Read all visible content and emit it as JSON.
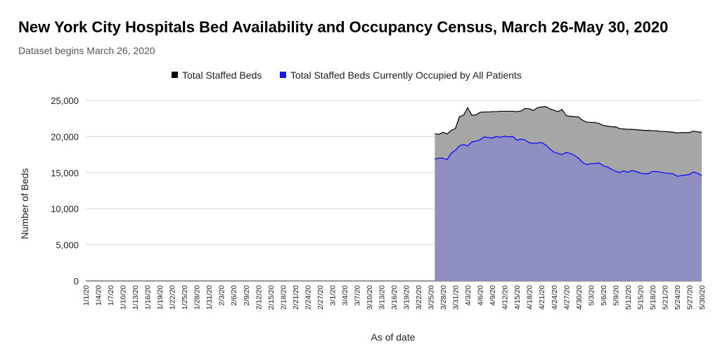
{
  "title": "New York City Hospitals Bed Availability and Occupancy Census, March 26-May 30, 2020",
  "subtitle": "Dataset begins March 26, 2020",
  "chart_data": {
    "type": "area",
    "title": "New York City Hospitals Bed Availability and Occupancy Census, March 26-May 30, 2020",
    "subtitle": "Dataset begins March 26, 2020",
    "xlabel": "As of date",
    "ylabel": "Number of Beds",
    "ylim": [
      0,
      25000
    ],
    "yticks": [
      0,
      5000,
      10000,
      15000,
      20000,
      25000
    ],
    "ytick_labels": [
      "0",
      "5,000",
      "10,000",
      "15,000",
      "20,000",
      "25,000"
    ],
    "x_range": [
      "1/1/20",
      "5/30/20"
    ],
    "xtick_labels": [
      "1/1/20",
      "1/4/20",
      "1/7/20",
      "1/10/20",
      "1/13/20",
      "1/16/20",
      "1/19/20",
      "1/22/20",
      "1/25/20",
      "1/28/20",
      "1/31/20",
      "2/3/20",
      "2/6/20",
      "2/9/20",
      "2/12/20",
      "2/15/20",
      "2/18/20",
      "2/21/20",
      "2/24/20",
      "2/27/20",
      "3/1/20",
      "3/4/20",
      "3/7/20",
      "3/10/20",
      "3/13/20",
      "3/16/20",
      "3/19/20",
      "3/22/20",
      "3/25/20",
      "3/28/20",
      "3/31/20",
      "4/3/20",
      "4/6/20",
      "4/9/20",
      "4/12/20",
      "4/15/20",
      "4/18/20",
      "4/21/20",
      "4/24/20",
      "4/27/20",
      "4/30/20",
      "5/3/20",
      "5/6/20",
      "5/9/20",
      "5/12/20",
      "5/15/20",
      "5/18/20",
      "5/21/20",
      "5/24/20",
      "5/27/20",
      "5/30/20"
    ],
    "grid": true,
    "legend": "top",
    "series": [
      {
        "name": "Total Staffed Beds",
        "color": "#000000",
        "fill": "#a6a6a6",
        "x": [
          "3/26/20",
          "3/27/20",
          "3/28/20",
          "3/29/20",
          "3/30/20",
          "3/31/20",
          "4/1/20",
          "4/2/20",
          "4/3/20",
          "4/4/20",
          "4/5/20",
          "4/6/20",
          "4/7/20",
          "4/8/20",
          "4/9/20",
          "4/10/20",
          "4/11/20",
          "4/12/20",
          "4/13/20",
          "4/14/20",
          "4/15/20",
          "4/16/20",
          "4/17/20",
          "4/18/20",
          "4/19/20",
          "4/20/20",
          "4/21/20",
          "4/22/20",
          "4/23/20",
          "4/24/20",
          "4/25/20",
          "4/26/20",
          "4/27/20",
          "4/28/20",
          "4/29/20",
          "4/30/20",
          "5/1/20",
          "5/2/20",
          "5/3/20",
          "5/4/20",
          "5/5/20",
          "5/6/20",
          "5/7/20",
          "5/8/20",
          "5/9/20",
          "5/10/20",
          "5/11/20",
          "5/12/20",
          "5/13/20",
          "5/14/20",
          "5/15/20",
          "5/16/20",
          "5/17/20",
          "5/18/20",
          "5/19/20",
          "5/20/20",
          "5/21/20",
          "5/22/20",
          "5/23/20",
          "5/24/20",
          "5/25/20",
          "5/26/20",
          "5/27/20",
          "5/28/20",
          "5/29/20",
          "5/30/20"
        ],
        "values": [
          20400,
          20300,
          20600,
          20350,
          20850,
          21100,
          22750,
          22950,
          24000,
          22950,
          23000,
          23350,
          23400,
          23400,
          23450,
          23450,
          23500,
          23500,
          23500,
          23500,
          23450,
          23550,
          23900,
          23850,
          23600,
          24000,
          24100,
          24150,
          23850,
          23650,
          23450,
          23750,
          22900,
          22800,
          22750,
          22700,
          22250,
          22000,
          21950,
          21950,
          21800,
          21550,
          21450,
          21350,
          21350,
          21100,
          21050,
          21000,
          21000,
          20950,
          20900,
          20850,
          20850,
          20800,
          20800,
          20700,
          20700,
          20650,
          20600,
          20500,
          20550,
          20550,
          20550,
          20750,
          20650,
          20600
        ]
      },
      {
        "name": "Total Staffed Beds Currently Occupied by All Patients",
        "color": "#0000ff",
        "fill": "#8f8fc2",
        "x": [
          "3/26/20",
          "3/27/20",
          "3/28/20",
          "3/29/20",
          "3/30/20",
          "3/31/20",
          "4/1/20",
          "4/2/20",
          "4/3/20",
          "4/4/20",
          "4/5/20",
          "4/6/20",
          "4/7/20",
          "4/8/20",
          "4/9/20",
          "4/10/20",
          "4/11/20",
          "4/12/20",
          "4/13/20",
          "4/14/20",
          "4/15/20",
          "4/16/20",
          "4/17/20",
          "4/18/20",
          "4/19/20",
          "4/20/20",
          "4/21/20",
          "4/22/20",
          "4/23/20",
          "4/24/20",
          "4/25/20",
          "4/26/20",
          "4/27/20",
          "4/28/20",
          "4/29/20",
          "4/30/20",
          "5/1/20",
          "5/2/20",
          "5/3/20",
          "5/4/20",
          "5/5/20",
          "5/6/20",
          "5/7/20",
          "5/8/20",
          "5/9/20",
          "5/10/20",
          "5/11/20",
          "5/12/20",
          "5/13/20",
          "5/14/20",
          "5/15/20",
          "5/16/20",
          "5/17/20",
          "5/18/20",
          "5/19/20",
          "5/20/20",
          "5/21/20",
          "5/22/20",
          "5/23/20",
          "5/24/20",
          "5/25/20",
          "5/26/20",
          "5/27/20",
          "5/28/20",
          "5/29/20",
          "5/30/20"
        ],
        "values": [
          16900,
          17000,
          17000,
          16800,
          17700,
          18100,
          18700,
          18900,
          18700,
          19250,
          19350,
          19550,
          19950,
          19850,
          19800,
          20000,
          19900,
          20050,
          19950,
          20000,
          19500,
          19650,
          19500,
          19150,
          19050,
          19100,
          19150,
          18850,
          18300,
          17850,
          17650,
          17500,
          17800,
          17650,
          17400,
          17000,
          16400,
          16100,
          16250,
          16250,
          16350,
          15950,
          15800,
          15450,
          15200,
          15000,
          15250,
          15050,
          15300,
          15150,
          14950,
          14850,
          14850,
          15150,
          15150,
          15050,
          14950,
          14900,
          14850,
          14500,
          14600,
          14650,
          14750,
          15100,
          14900,
          14600
        ]
      }
    ]
  }
}
